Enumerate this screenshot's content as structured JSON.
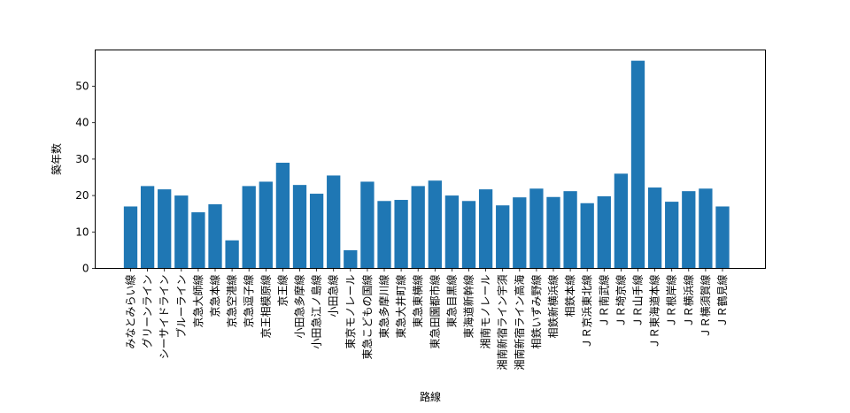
{
  "chart_data": {
    "type": "bar",
    "xlabel": "路線",
    "ylabel": "築年数",
    "ylim": [
      0,
      60
    ],
    "yticks": [
      0,
      10,
      20,
      30,
      40,
      50
    ],
    "bar_color": "#1f77b4",
    "categories": [
      "みなとみらい線",
      "グリーンライン",
      "シーサイドライン",
      "ブルーライン",
      "京急大師線",
      "京急本線",
      "京急空港線",
      "京急逗子線",
      "京王相模原線",
      "京王線",
      "小田急多摩線",
      "小田急江ノ島線",
      "小田急線",
      "東京モノレール",
      "東急こどもの国線",
      "東急多摩川線",
      "東急大井町線",
      "東急東横線",
      "東急田園都市線",
      "東急目黒線",
      "東海道新幹線",
      "湘南モノレール",
      "湘南新宿ライン宇須",
      "湘南新宿ライン高海",
      "相鉄いずみ野線",
      "相鉄新横浜線",
      "相鉄本線",
      "ＪＲ京浜東北線",
      "ＪＲ南武線",
      "ＪＲ埼京線",
      "ＪＲ山手線",
      "ＪＲ東海道本線",
      "ＪＲ根岸線",
      "ＪＲ横浜線",
      "ＪＲ横須賀線",
      "ＪＲ鶴見線"
    ],
    "values": [
      17.0,
      22.6,
      21.7,
      20.0,
      15.4,
      17.6,
      7.7,
      22.6,
      23.8,
      29.0,
      22.9,
      20.5,
      25.5,
      5.0,
      23.8,
      18.5,
      18.8,
      22.6,
      24.1,
      20.0,
      18.5,
      21.7,
      17.3,
      19.5,
      21.9,
      19.6,
      21.2,
      17.9,
      19.8,
      26.0,
      57.0,
      22.2,
      18.3,
      21.2,
      21.9,
      17.0
    ]
  }
}
